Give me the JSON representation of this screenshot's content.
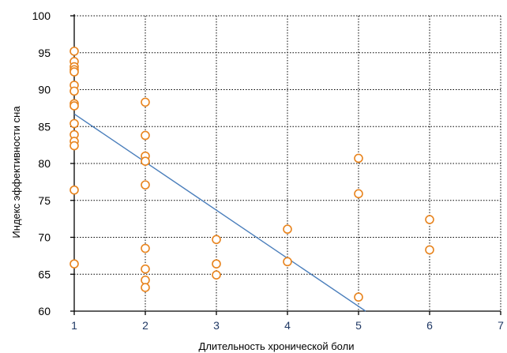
{
  "chart_data": {
    "type": "scatter",
    "title": "",
    "xlabel": "Длительность хронической боли",
    "ylabel": "Индекс эффективности сна",
    "xlim": [
      1,
      7
    ],
    "ylim": [
      60,
      100
    ],
    "x_ticks": [
      1,
      2,
      3,
      4,
      5,
      6,
      7
    ],
    "y_ticks": [
      60,
      65,
      70,
      75,
      80,
      85,
      90,
      95,
      100
    ],
    "grid": true,
    "legend": "none",
    "series": [
      {
        "marker": "open-circle",
        "color": "#e8841e",
        "points": [
          [
            1,
            95.2
          ],
          [
            1,
            93.8
          ],
          [
            1,
            93.1
          ],
          [
            1,
            92.7
          ],
          [
            1,
            92.4
          ],
          [
            1,
            90.6
          ],
          [
            1,
            89.8
          ],
          [
            1,
            88.1
          ],
          [
            1,
            87.8
          ],
          [
            1,
            85.4
          ],
          [
            1,
            83.9
          ],
          [
            1,
            83.0
          ],
          [
            1,
            82.4
          ],
          [
            1,
            76.4
          ],
          [
            1,
            66.4
          ],
          [
            2,
            88.3
          ],
          [
            2,
            83.8
          ],
          [
            2,
            81.0
          ],
          [
            2,
            80.3
          ],
          [
            2,
            77.1
          ],
          [
            2,
            68.5
          ],
          [
            2,
            65.7
          ],
          [
            2,
            64.2
          ],
          [
            2,
            63.2
          ],
          [
            3,
            69.7
          ],
          [
            3,
            66.4
          ],
          [
            3,
            64.9
          ],
          [
            4,
            71.1
          ],
          [
            4,
            66.7
          ],
          [
            5,
            80.7
          ],
          [
            5,
            75.9
          ],
          [
            5,
            61.9
          ],
          [
            6,
            72.4
          ],
          [
            6,
            68.3
          ]
        ]
      }
    ],
    "trendline": {
      "type": "linear",
      "color": "#4a7ebb",
      "points": [
        [
          1,
          86.7
        ],
        [
          5.1,
          60.0
        ]
      ]
    }
  }
}
